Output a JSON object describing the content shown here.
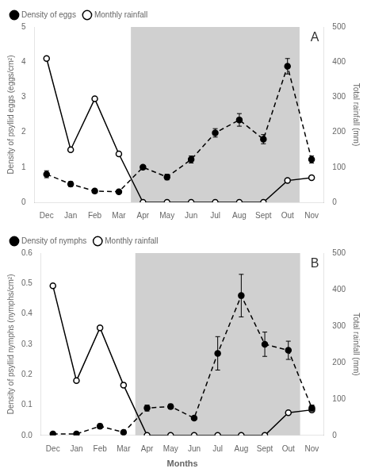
{
  "chart_data": [
    {
      "type": "line",
      "categories": [
        "Dec",
        "Jan",
        "Feb",
        "Mar",
        "Apr",
        "May",
        "Jun",
        "Jul",
        "Aug",
        "Sept",
        "Out",
        "Nov"
      ],
      "series": [
        {
          "name": "Density of eggs",
          "values": [
            0.8,
            0.52,
            0.32,
            0.3,
            1.0,
            0.72,
            1.22,
            1.98,
            2.35,
            1.8,
            3.88,
            1.22
          ],
          "errors": [
            0.1,
            0.07,
            0.05,
            0.04,
            0.05,
            0.08,
            0.1,
            0.12,
            0.18,
            0.13,
            0.22,
            0.1
          ],
          "color": "#000000",
          "line_style": "dashed",
          "marker": "circle"
        },
        {
          "name": "Monthly rainfall",
          "values": [
            410,
            150,
            295,
            138,
            0,
            0,
            0,
            0,
            0,
            0,
            62,
            70
          ],
          "axis": "y2",
          "color": "#000000",
          "line_style": "solid",
          "marker": "open_circle"
        }
      ],
      "ylabel": "Density of psyllid eggs (eggs/cm²)",
      "y2label": "Total rainfall (mm)",
      "ylim": [
        0,
        5
      ],
      "yticks": [
        0,
        1,
        2,
        3,
        4,
        5
      ],
      "y2lim": [
        0,
        500
      ],
      "y2ticks": [
        0,
        100,
        200,
        300,
        400,
        500
      ],
      "legend": "upper left",
      "grid": false,
      "annotations": [
        "A"
      ],
      "shade": {
        "from": "Apr",
        "to": "Out",
        "color": "#d0d0d0"
      }
    },
    {
      "type": "line",
      "categories": [
        "Dec",
        "Jan",
        "Feb",
        "Mar",
        "Apr",
        "May",
        "Jun",
        "Jul",
        "Aug",
        "Sept",
        "Out",
        "Nov"
      ],
      "series": [
        {
          "name": "Density of nymphs",
          "values": [
            0.005,
            0.005,
            0.03,
            0.01,
            0.09,
            0.095,
            0.057,
            0.27,
            0.46,
            0.3,
            0.28,
            0.09
          ],
          "errors": [
            0.003,
            0.003,
            0.008,
            0.004,
            0.01,
            0.008,
            0.006,
            0.055,
            0.07,
            0.04,
            0.03,
            0.01
          ],
          "color": "#000000",
          "line_style": "dashed",
          "marker": "circle"
        },
        {
          "name": "Monthly rainfall",
          "values": [
            410,
            150,
            295,
            138,
            0,
            0,
            0,
            0,
            0,
            0,
            62,
            70
          ],
          "axis": "y2",
          "color": "#000000",
          "line_style": "solid",
          "marker": "open_circle"
        }
      ],
      "xlabel": "Months",
      "ylabel": "Density of psyllid nymphs (nymphs/cm²)",
      "y2label": "Total rainfall (mm)",
      "ylim": [
        0,
        0.6
      ],
      "yticks": [
        {
          "value": 0.0,
          "label": "0.0"
        },
        0.1,
        0.2,
        0.3,
        0.4,
        0.5,
        0.6
      ],
      "y2lim": [
        0,
        500
      ],
      "y2ticks": [
        0,
        100,
        200,
        300,
        400,
        500
      ],
      "legend": "upper left",
      "grid": false,
      "annotations": [
        "B"
      ],
      "shade": {
        "from": "Apr",
        "to": "Out",
        "color": "#d0d0d0"
      }
    }
  ]
}
